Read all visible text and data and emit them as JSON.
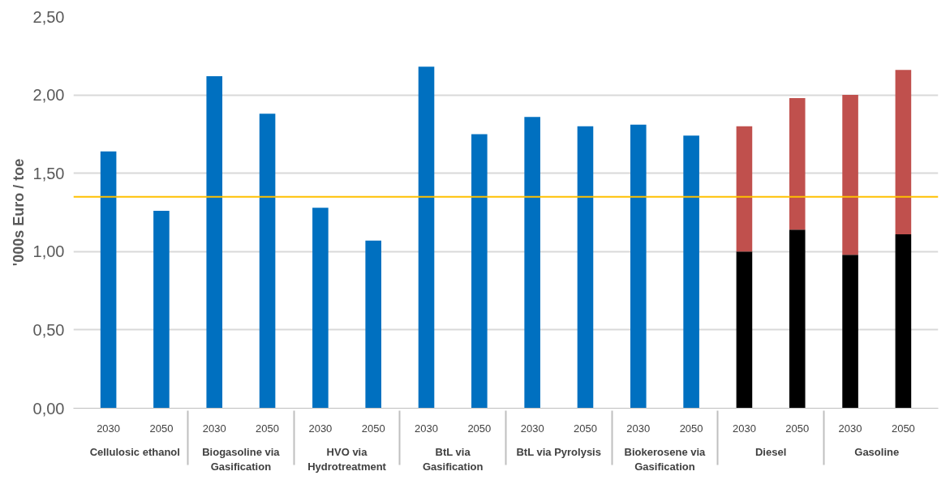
{
  "chart_data": {
    "type": "bar",
    "ylabel": "'000s Euro / toe",
    "categories": [
      "2030",
      "2050",
      "2030",
      "2050",
      "2030",
      "2050",
      "2030",
      "2050",
      "2030",
      "2050",
      "2030",
      "2050",
      "2030",
      "2050",
      "2030",
      "2050"
    ],
    "annotations": [
      "Cellulosic ethanol",
      "Biogasoline via Gasification",
      "HVO via Hydrotreatment",
      "BtL via Gasification",
      "BtL via Pyrolysis",
      "Biokerosene via Gasification",
      "Diesel",
      "Gasoline"
    ],
    "stacked": true,
    "series": [
      {
        "color": "#0070c0",
        "values": [
          1.64,
          1.26,
          2.12,
          1.88,
          1.28,
          1.07,
          2.18,
          1.75,
          1.86,
          1.8,
          1.81,
          1.74,
          null,
          null,
          null,
          null
        ]
      },
      {
        "color": "#000000",
        "values": [
          null,
          null,
          null,
          null,
          null,
          null,
          null,
          null,
          null,
          null,
          null,
          null,
          1.0,
          1.14,
          0.98,
          1.11
        ]
      },
      {
        "color": "#c0504d",
        "values": [
          null,
          null,
          null,
          null,
          null,
          null,
          null,
          null,
          null,
          null,
          null,
          null,
          0.8,
          0.84,
          1.02,
          1.05
        ]
      }
    ],
    "ylim": [
      0,
      2.5
    ],
    "yticks": [
      {
        "value": 0,
        "label": "0,00"
      },
      {
        "value": 0.5,
        "label": "0,50"
      },
      {
        "value": 1,
        "label": "1,00"
      },
      {
        "value": 1.5,
        "label": "1,50"
      },
      {
        "value": 2,
        "label": "2,00"
      },
      {
        "value": 2.5,
        "label": "2,50"
      }
    ],
    "grid": "y",
    "ref_lines": [
      {
        "axis": "y",
        "value": 1.35,
        "color": "#ffc000"
      }
    ]
  }
}
